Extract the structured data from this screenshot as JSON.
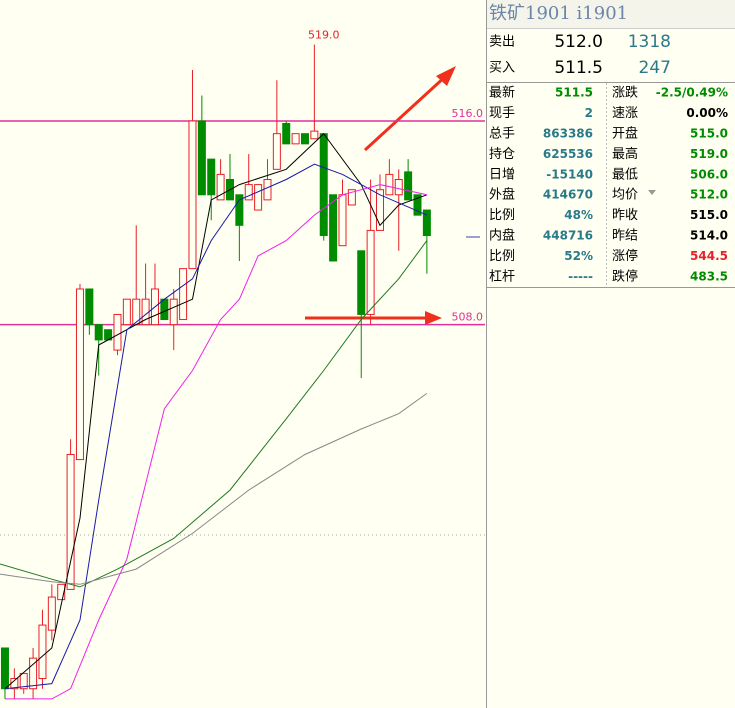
{
  "chart_data": {
    "type": "candlestick",
    "xlim": [
      -0.53,
      51.2
    ],
    "ylim": [
      493.1,
      520.75
    ],
    "up_color": "#e8202a",
    "down_color": "#008c00",
    "open": [
      495.3,
      493.7,
      493.7,
      493.7,
      494.1,
      496.0,
      497.2,
      497.6,
      502.7,
      509.4,
      508.0,
      507.8,
      507.0,
      508.0,
      508.0,
      508.0,
      508.0,
      509.0,
      508.0,
      508.2,
      510.2,
      516.0,
      514.5,
      512.9,
      513.7,
      513.1,
      512.9,
      512.5,
      512.9,
      514.1,
      515.9,
      515.1,
      515.5,
      515.3,
      515.5,
      513.1,
      511.1,
      512.7,
      510.9,
      508.4,
      511.7,
      513.1,
      513.1,
      514.0,
      513.1,
      512.5
    ],
    "high": [
      495.3,
      494.5,
      494.3,
      495.3,
      496.8,
      497.8,
      497.8,
      503.5,
      509.6,
      509.4,
      508.0,
      507.8,
      508.4,
      509.0,
      511.9,
      510.4,
      510.4,
      509.0,
      509.4,
      510.2,
      518.0,
      517.0,
      514.5,
      514.5,
      514.7,
      513.1,
      514.7,
      513.5,
      514.5,
      517.6,
      516.0,
      515.5,
      515.5,
      519.0,
      515.5,
      513.1,
      513.7,
      513.3,
      510.9,
      513.7,
      513.9,
      514.5,
      514.1,
      514.5,
      513.1,
      512.5
    ],
    "low": [
      493.3,
      493.3,
      493.5,
      493.3,
      493.7,
      495.6,
      497.2,
      497.6,
      502.7,
      507.6,
      506.0,
      507.4,
      506.8,
      508.0,
      508.0,
      508.0,
      508.0,
      508.2,
      507.0,
      508.2,
      510.2,
      513.1,
      512.1,
      512.9,
      512.9,
      510.5,
      512.9,
      512.5,
      512.9,
      514.1,
      515.1,
      515.1,
      515.1,
      515.3,
      511.3,
      510.5,
      511.1,
      512.7,
      505.9,
      508.0,
      511.7,
      513.1,
      510.9,
      512.9,
      512.3,
      510.0
    ],
    "close": [
      493.7,
      494.1,
      494.3,
      494.9,
      496.2,
      497.3,
      497.8,
      502.9,
      509.4,
      508.0,
      507.4,
      507.4,
      508.4,
      509.0,
      509.0,
      509.0,
      509.4,
      508.2,
      509.0,
      510.2,
      516.0,
      513.1,
      513.1,
      513.9,
      512.9,
      511.9,
      513.5,
      513.5,
      513.7,
      515.5,
      515.1,
      515.5,
      515.1,
      515.6,
      511.5,
      510.5,
      513.1,
      513.3,
      508.4,
      511.7,
      513.3,
      513.9,
      513.7,
      512.9,
      512.3,
      511.5
    ],
    "lines": [
      {
        "color": "#000000",
        "x": [
          0,
          5,
          8,
          10,
          15,
          20,
          22,
          25,
          30,
          34,
          38,
          40,
          42,
          45
        ],
        "values": [
          493.7,
          495.3,
          500.4,
          507.2,
          508.2,
          509.0,
          512.9,
          513.5,
          514.1,
          515.5,
          513.5,
          511.9,
          512.7,
          513.1
        ]
      },
      {
        "color": "#1a1aa8",
        "x": [
          0,
          5,
          8,
          10,
          13,
          17,
          20,
          22,
          25,
          30,
          33,
          36,
          40,
          45
        ],
        "values": [
          493.7,
          493.9,
          496.4,
          501.1,
          507.8,
          509.0,
          509.8,
          511.3,
          512.9,
          513.7,
          514.3,
          513.9,
          513.1,
          512.3
        ]
      },
      {
        "color": "#ee22ee",
        "x": [
          0,
          5,
          7,
          10,
          13,
          17,
          20,
          23,
          25,
          27,
          30,
          33,
          36,
          40,
          45
        ],
        "values": [
          493.3,
          493.3,
          493.7,
          496.4,
          498.8,
          504.7,
          506.2,
          508.2,
          509.0,
          510.7,
          511.3,
          512.3,
          513.1,
          513.5,
          513.1
        ]
      },
      {
        "color": "#227722",
        "x": [
          -0.53,
          5,
          8,
          12,
          18,
          24,
          30,
          34,
          38,
          42,
          45
        ],
        "values": [
          498.6,
          498.0,
          497.7,
          498.4,
          499.6,
          501.5,
          504.3,
          506.2,
          508.2,
          509.8,
          511.3
        ]
      },
      {
        "color": "#888888",
        "x": [
          -0.53,
          5,
          8,
          14,
          20,
          26,
          32,
          38,
          42,
          45
        ],
        "values": [
          498.2,
          497.9,
          497.8,
          498.4,
          499.8,
          501.5,
          502.9,
          503.9,
          504.5,
          505.3
        ]
      }
    ],
    "hline_color": "#e0309a",
    "hlines": [
      {
        "value": 516,
        "label": "516.0"
      },
      {
        "value": 508,
        "label": "508.0"
      }
    ],
    "annotations": [
      {
        "x": 34,
        "value": 519,
        "label": "519.0"
      }
    ]
  },
  "quote": {
    "title": "铁矿1901  i1901",
    "ask": {
      "label": "卖出",
      "price": "512.0",
      "volume": "1318"
    },
    "bid": {
      "label": "买入",
      "price": "511.5",
      "volume": "247"
    },
    "rows": [
      [
        "最新",
        "511.5",
        "涨跌",
        "-2.5/0.49%"
      ],
      [
        "现手",
        "2",
        "速涨",
        "0.00%"
      ],
      [
        "总手",
        "863386",
        "开盘",
        "515.0"
      ],
      [
        "持仓",
        "625536",
        "最高",
        "519.0"
      ],
      [
        "日增",
        "-15140",
        "最低",
        "506.0"
      ],
      [
        "外盘",
        "414670",
        "均价",
        "512.0"
      ],
      [
        "比例",
        "48%",
        "昨收",
        "515.0"
      ],
      [
        "内盘",
        "448716",
        "昨结",
        "514.0"
      ],
      [
        "比例",
        "52%",
        "涨停",
        "544.5"
      ],
      [
        "杠杆",
        "-----",
        "跌停",
        "483.5"
      ]
    ]
  }
}
